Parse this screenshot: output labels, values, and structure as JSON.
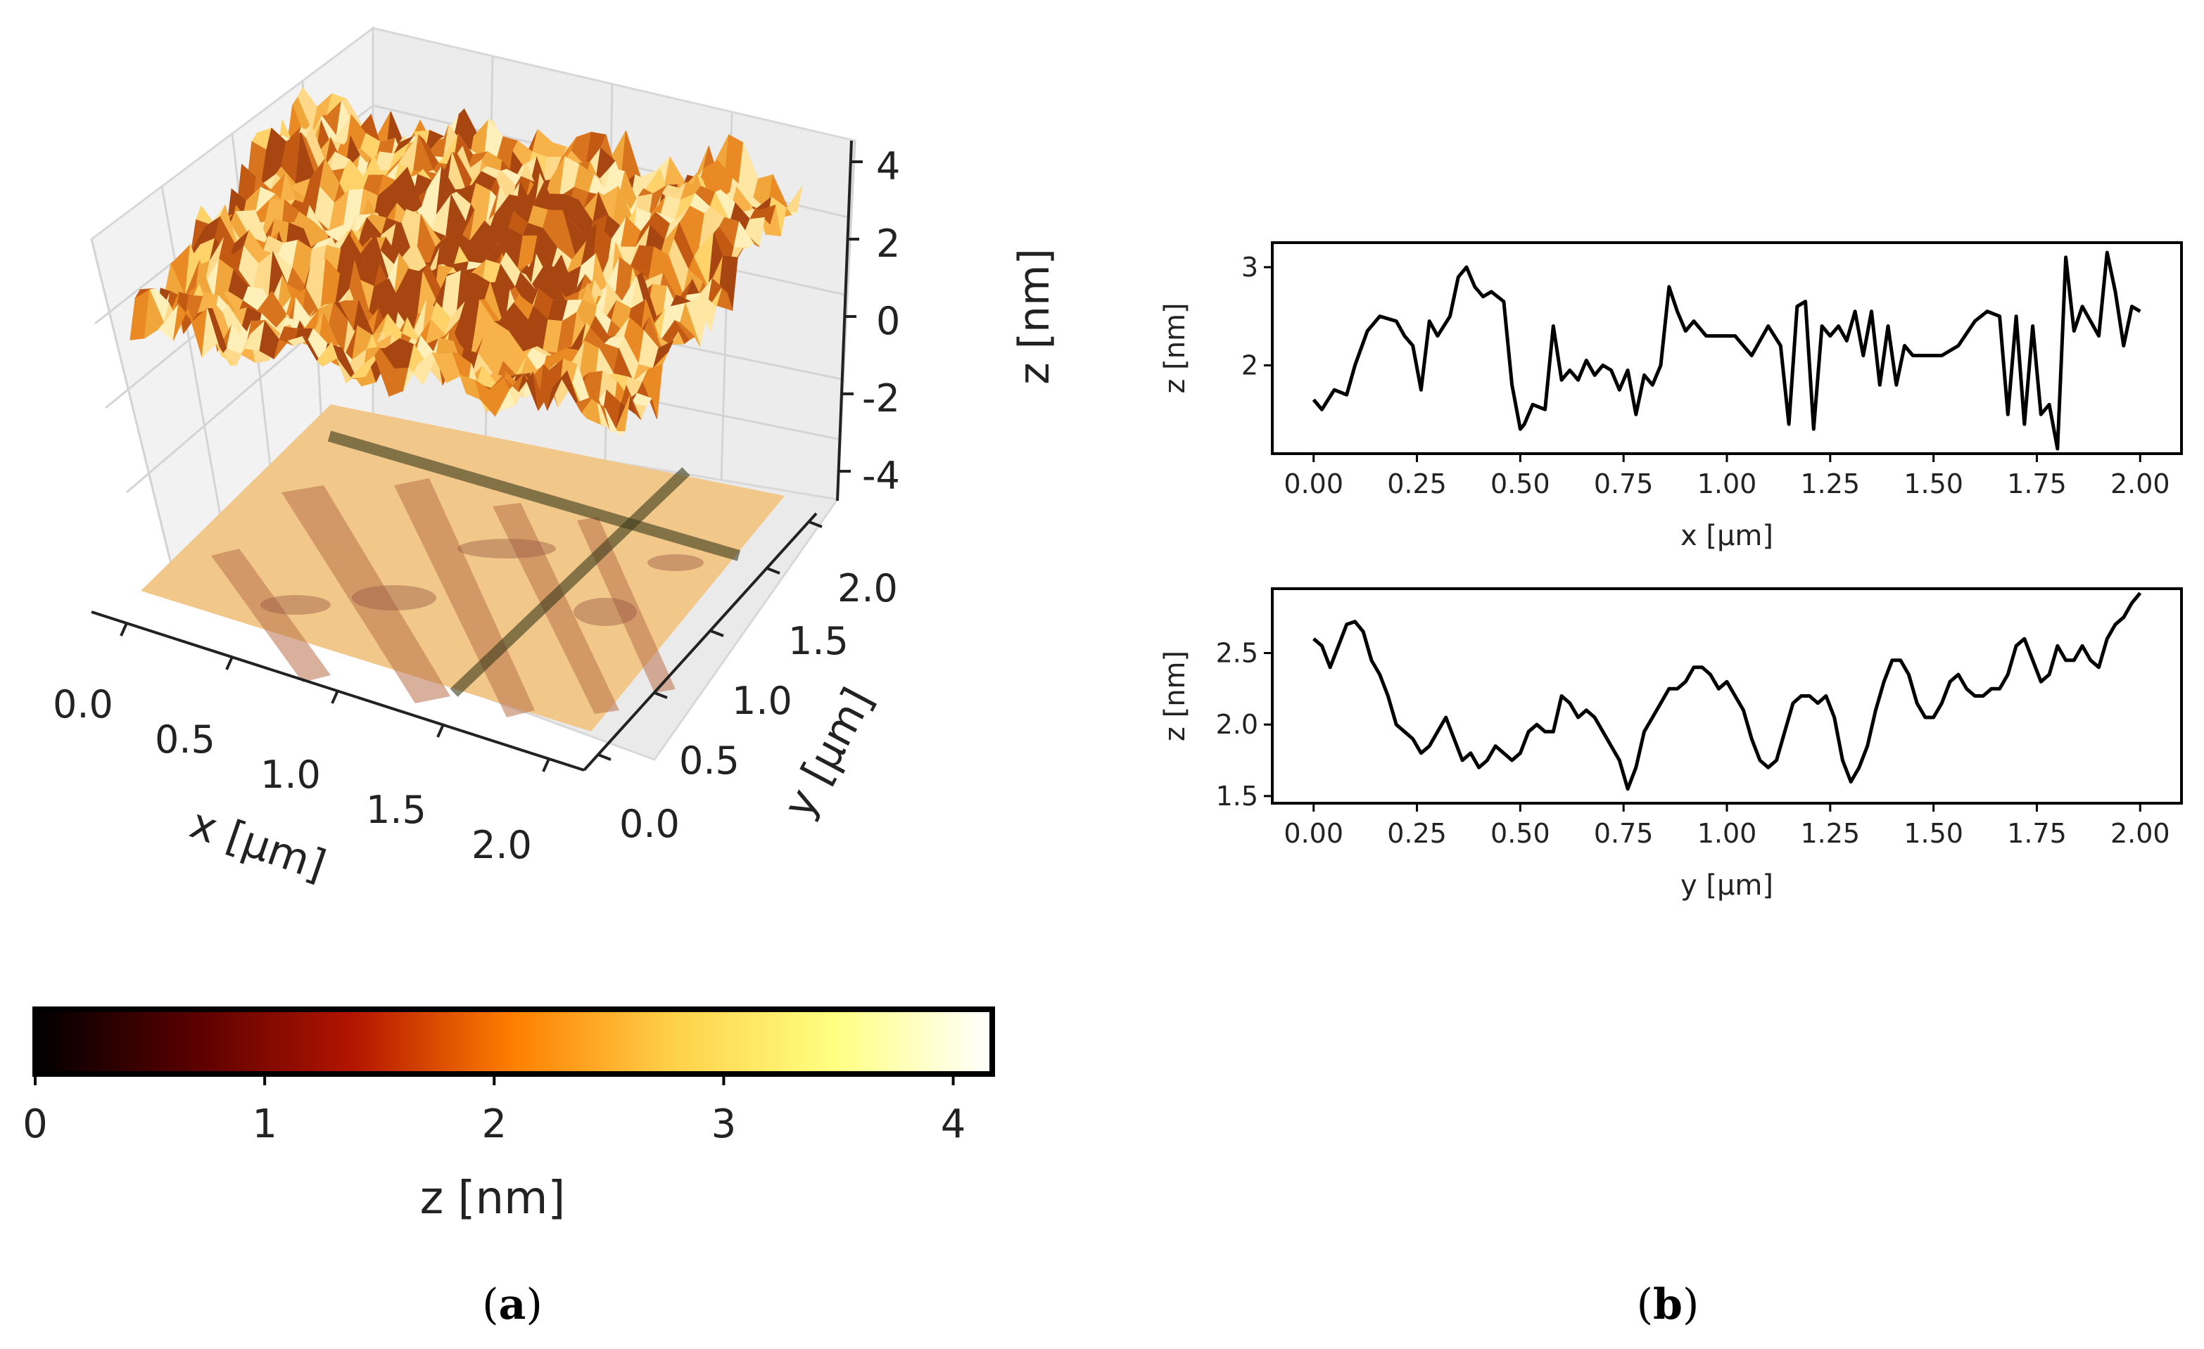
{
  "panel_labels": {
    "a_open": "(",
    "a_letter": "a",
    "a_close": ")",
    "b_open": "(",
    "b_letter": "b",
    "b_close": ")"
  },
  "colormap": {
    "name": "afmhot",
    "stops": [
      "#000000",
      "#5a0000",
      "#b31500",
      "#ff7f00",
      "#ffd14a",
      "#ffff80",
      "#ffffff"
    ]
  },
  "chart_data": [
    {
      "type": "surface3d",
      "xlabel": "x [μm]",
      "ylabel": "y [μm]",
      "zlabel": "z [nm]",
      "x_ticks": [
        "0.0",
        "0.5",
        "1.0",
        "1.5",
        "2.0"
      ],
      "y_ticks": [
        "0.0",
        "0.5",
        "1.0",
        "1.5",
        "2.0"
      ],
      "z_ticks": [
        "4",
        "2",
        "0",
        "-2",
        "-4"
      ],
      "xlim": [
        0,
        2
      ],
      "ylim": [
        0,
        2
      ],
      "zlim": [
        -4,
        4
      ],
      "grid": true
    },
    {
      "type": "colorbar",
      "label": "z [nm]",
      "ticks": [
        "0",
        "1",
        "2",
        "3",
        "4"
      ],
      "range": [
        0,
        4.17
      ]
    },
    {
      "type": "line",
      "xlabel": "x [μm]",
      "ylabel": "z [nm]",
      "xlim": [
        -0.1,
        2.1
      ],
      "ylim": [
        1.1,
        3.25
      ],
      "x_ticks": [
        "0.00",
        "0.25",
        "0.50",
        "0.75",
        "1.00",
        "1.25",
        "1.50",
        "1.75",
        "2.00"
      ],
      "y_ticks": [
        "3",
        "2"
      ],
      "series": [
        {
          "x": [
            0.0,
            0.02,
            0.05,
            0.08,
            0.1,
            0.13,
            0.16,
            0.2,
            0.22,
            0.24,
            0.26,
            0.28,
            0.3,
            0.33,
            0.35,
            0.37,
            0.39,
            0.41,
            0.43,
            0.46,
            0.48,
            0.5,
            0.51,
            0.53,
            0.56,
            0.58,
            0.6,
            0.62,
            0.64,
            0.66,
            0.68,
            0.7,
            0.72,
            0.74,
            0.76,
            0.78,
            0.8,
            0.82,
            0.84,
            0.86,
            0.88,
            0.9,
            0.92,
            0.95,
            0.98,
            1.02,
            1.06,
            1.1,
            1.13,
            1.15,
            1.17,
            1.19,
            1.21,
            1.23,
            1.25,
            1.27,
            1.29,
            1.31,
            1.33,
            1.35,
            1.37,
            1.39,
            1.41,
            1.43,
            1.45,
            1.48,
            1.52,
            1.56,
            1.6,
            1.63,
            1.66,
            1.68,
            1.7,
            1.72,
            1.74,
            1.76,
            1.78,
            1.8,
            1.82,
            1.84,
            1.86,
            1.88,
            1.9,
            1.92,
            1.94,
            1.96,
            1.98,
            2.0
          ],
          "y": [
            1.65,
            1.55,
            1.75,
            1.7,
            2.0,
            2.35,
            2.5,
            2.45,
            2.3,
            2.2,
            1.75,
            2.45,
            2.3,
            2.5,
            2.9,
            3.0,
            2.8,
            2.7,
            2.75,
            2.65,
            1.8,
            1.35,
            1.4,
            1.6,
            1.55,
            2.4,
            1.85,
            1.95,
            1.85,
            2.05,
            1.9,
            2.0,
            1.95,
            1.75,
            1.95,
            1.5,
            1.9,
            1.8,
            2.0,
            2.8,
            2.55,
            2.35,
            2.45,
            2.3,
            2.3,
            2.3,
            2.1,
            2.4,
            2.2,
            1.4,
            2.6,
            2.65,
            1.35,
            2.4,
            2.3,
            2.4,
            2.25,
            2.55,
            2.1,
            2.55,
            1.8,
            2.4,
            1.8,
            2.2,
            2.1,
            2.1,
            2.1,
            2.2,
            2.45,
            2.55,
            2.5,
            1.5,
            2.5,
            1.4,
            2.4,
            1.5,
            1.6,
            1.15,
            3.1,
            2.35,
            2.6,
            2.45,
            2.3,
            3.15,
            2.75,
            2.2,
            2.6,
            2.55
          ]
        }
      ]
    },
    {
      "type": "line",
      "xlabel": "y [μm]",
      "ylabel": "z [nm]",
      "xlim": [
        -0.1,
        2.1
      ],
      "ylim": [
        1.45,
        2.95
      ],
      "x_ticks": [
        "0.00",
        "0.25",
        "0.50",
        "0.75",
        "1.00",
        "1.25",
        "1.50",
        "1.75",
        "2.00"
      ],
      "y_ticks": [
        "2.5",
        "2.0",
        "1.5"
      ],
      "series": [
        {
          "x": [
            0.0,
            0.02,
            0.04,
            0.06,
            0.08,
            0.1,
            0.12,
            0.14,
            0.16,
            0.18,
            0.2,
            0.22,
            0.24,
            0.26,
            0.28,
            0.3,
            0.32,
            0.34,
            0.36,
            0.38,
            0.4,
            0.42,
            0.44,
            0.46,
            0.48,
            0.5,
            0.52,
            0.54,
            0.56,
            0.58,
            0.6,
            0.62,
            0.64,
            0.66,
            0.68,
            0.7,
            0.72,
            0.74,
            0.76,
            0.78,
            0.8,
            0.82,
            0.84,
            0.86,
            0.88,
            0.9,
            0.92,
            0.94,
            0.96,
            0.98,
            1.0,
            1.02,
            1.04,
            1.06,
            1.08,
            1.1,
            1.12,
            1.14,
            1.16,
            1.18,
            1.2,
            1.22,
            1.24,
            1.26,
            1.28,
            1.3,
            1.32,
            1.34,
            1.36,
            1.38,
            1.4,
            1.42,
            1.44,
            1.46,
            1.48,
            1.5,
            1.52,
            1.54,
            1.56,
            1.58,
            1.6,
            1.62,
            1.64,
            1.66,
            1.68,
            1.7,
            1.72,
            1.74,
            1.76,
            1.78,
            1.8,
            1.82,
            1.84,
            1.86,
            1.88,
            1.9,
            1.92,
            1.94,
            1.96,
            1.98,
            2.0
          ],
          "y": [
            2.6,
            2.55,
            2.4,
            2.55,
            2.7,
            2.72,
            2.65,
            2.45,
            2.35,
            2.2,
            2.0,
            1.95,
            1.9,
            1.8,
            1.85,
            1.95,
            2.05,
            1.9,
            1.75,
            1.8,
            1.7,
            1.75,
            1.85,
            1.8,
            1.75,
            1.8,
            1.95,
            2.0,
            1.95,
            1.95,
            2.2,
            2.15,
            2.05,
            2.1,
            2.05,
            1.95,
            1.85,
            1.75,
            1.55,
            1.7,
            1.95,
            2.05,
            2.15,
            2.25,
            2.25,
            2.3,
            2.4,
            2.4,
            2.35,
            2.25,
            2.3,
            2.2,
            2.1,
            1.9,
            1.75,
            1.7,
            1.75,
            1.95,
            2.15,
            2.2,
            2.2,
            2.15,
            2.2,
            2.05,
            1.75,
            1.6,
            1.7,
            1.85,
            2.1,
            2.3,
            2.45,
            2.45,
            2.35,
            2.15,
            2.05,
            2.05,
            2.15,
            2.3,
            2.35,
            2.25,
            2.2,
            2.2,
            2.25,
            2.25,
            2.35,
            2.55,
            2.6,
            2.45,
            2.3,
            2.35,
            2.55,
            2.45,
            2.45,
            2.55,
            2.45,
            2.4,
            2.6,
            2.7,
            2.75,
            2.85,
            2.92
          ]
        }
      ]
    }
  ]
}
